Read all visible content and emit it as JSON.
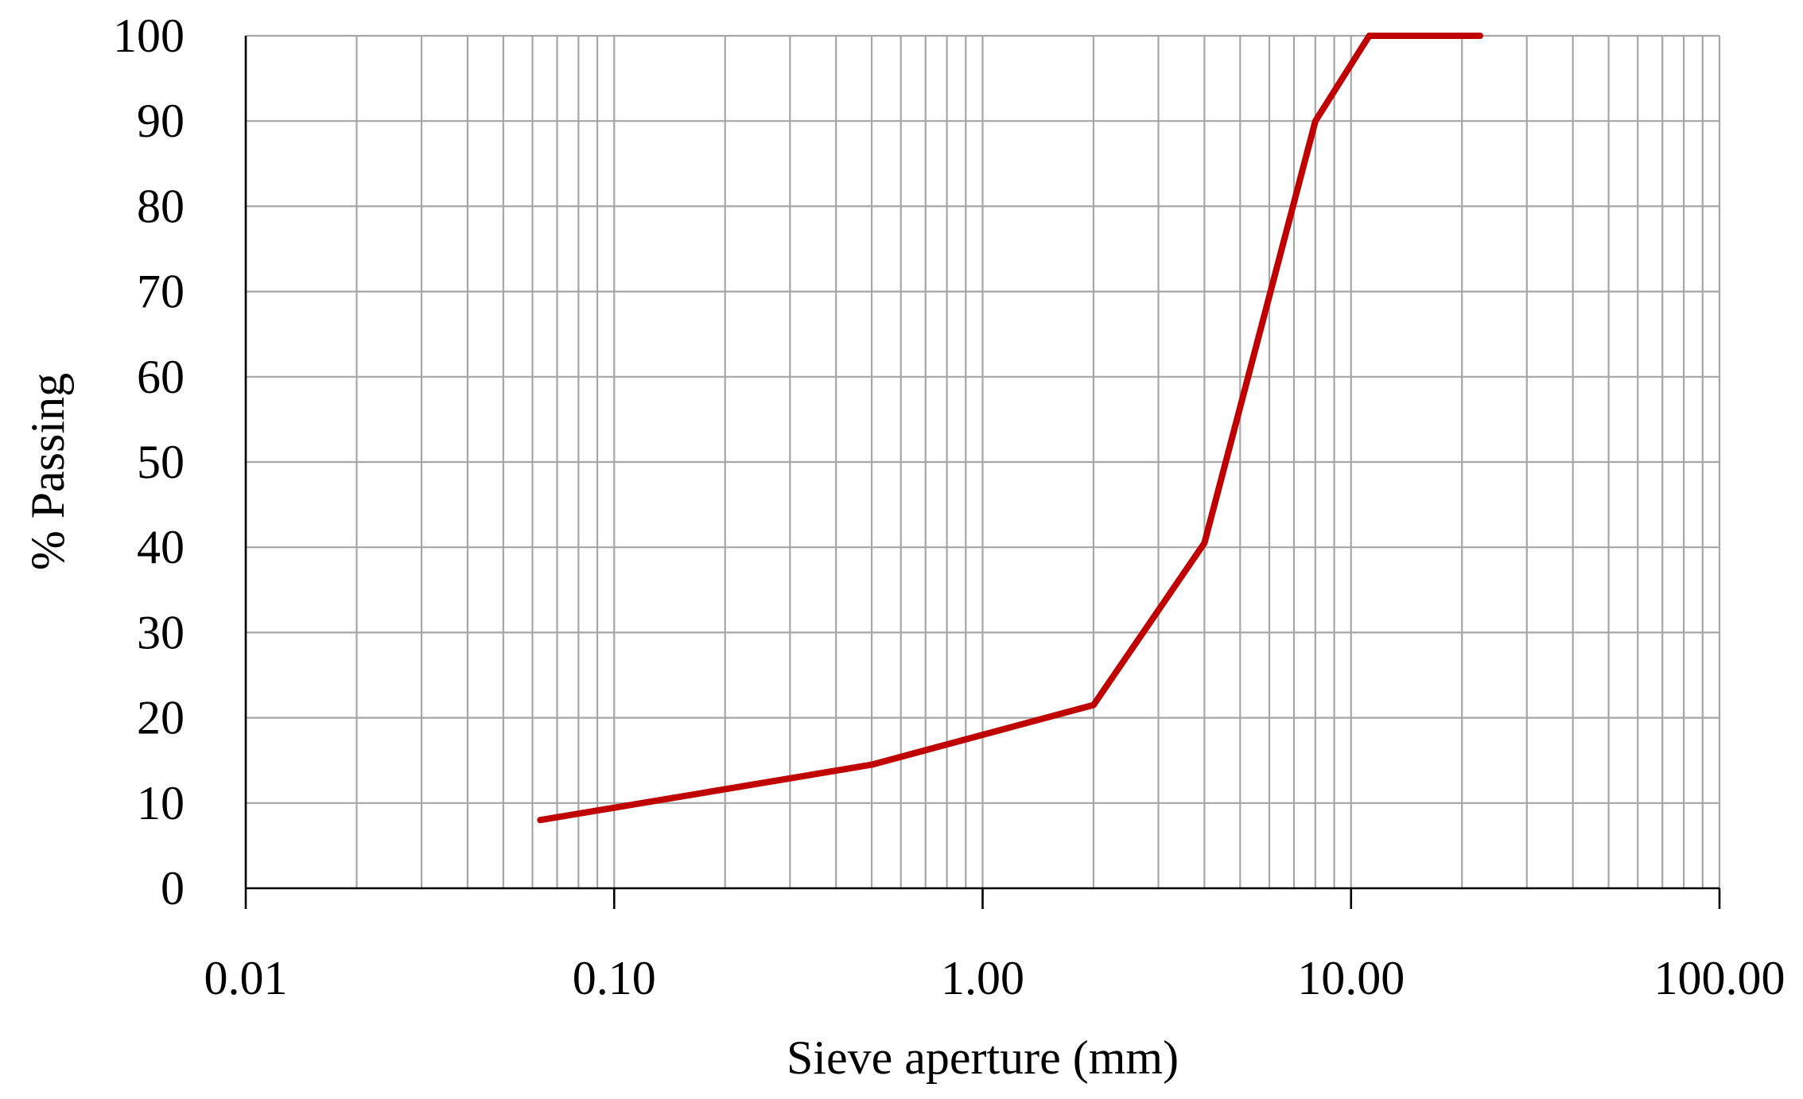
{
  "chart_data": {
    "type": "line",
    "title": "",
    "xlabel": "Sieve aperture (mm)",
    "ylabel": "% Passing",
    "x_scale": "log",
    "xlim": [
      0.01,
      100
    ],
    "ylim": [
      0,
      100
    ],
    "x_ticks": [
      0.01,
      0.1,
      1,
      10,
      100
    ],
    "x_tick_labels": [
      "0.01",
      "0.10",
      "1.00",
      "10.00",
      "100.00"
    ],
    "y_ticks": [
      0,
      10,
      20,
      30,
      40,
      50,
      60,
      70,
      80,
      90,
      100
    ],
    "y_tick_labels": [
      "0",
      "10",
      "20",
      "30",
      "40",
      "50",
      "60",
      "70",
      "80",
      "90",
      "100"
    ],
    "grid": true,
    "legend": "none",
    "series": [
      {
        "color": "#c00000",
        "x": [
          0.063,
          0.5,
          2,
          4,
          8,
          11.2,
          22.4
        ],
        "y": [
          8,
          14.5,
          21.5,
          40.5,
          90,
          100,
          100
        ]
      }
    ]
  }
}
